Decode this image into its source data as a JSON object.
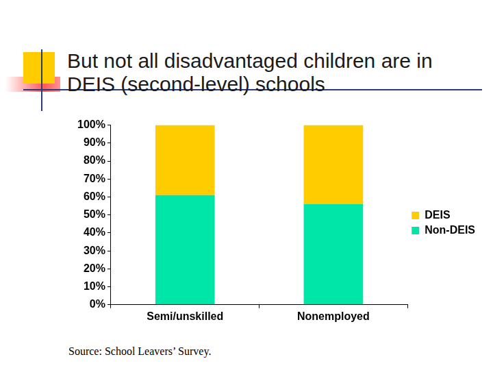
{
  "chart_data": {
    "type": "bar",
    "title": "But not all disadvantaged children are in DEIS (second-level) schools",
    "categories": [
      "Semi/unskilled",
      "Nonemployed"
    ],
    "series": [
      {
        "name": "Non-DEIS",
        "color": "#00e6a8",
        "values": [
          61,
          56
        ]
      },
      {
        "name": "DEIS",
        "color": "#ffcc00",
        "values": [
          39,
          44
        ]
      }
    ],
    "stacked": true,
    "ylim": [
      0,
      100
    ],
    "yticks": [
      {
        "value": 0,
        "label": "0%"
      },
      {
        "value": 10,
        "label": "10%"
      },
      {
        "value": 20,
        "label": "20%"
      },
      {
        "value": 30,
        "label": "30%"
      },
      {
        "value": 40,
        "label": "40%"
      },
      {
        "value": 50,
        "label": "50%"
      },
      {
        "value": 60,
        "label": "60%"
      },
      {
        "value": 70,
        "label": "70%"
      },
      {
        "value": 80,
        "label": "80%"
      },
      {
        "value": 90,
        "label": "90%"
      },
      {
        "value": 100,
        "label": "100%"
      }
    ],
    "grid": false,
    "legend": "right",
    "annotations": [
      "Source: School Leavers’ Survey."
    ]
  }
}
